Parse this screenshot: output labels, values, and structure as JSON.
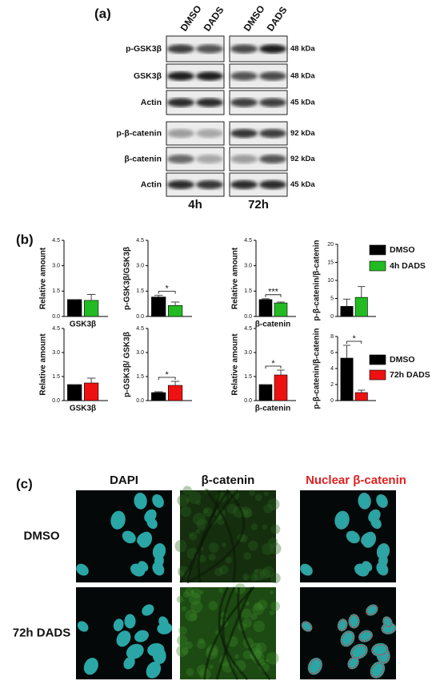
{
  "panel_a": {
    "label": "(a)",
    "columns": [
      "DMSO",
      "DADS",
      "DMSO",
      "DADS"
    ],
    "rows": [
      "p-GSK3β",
      "GSK3β",
      "Actin",
      "p-β-catenin",
      "β-catenin",
      "Actin"
    ],
    "sizes": [
      "48 kDa",
      "48 kDa",
      "45 kDa",
      "92 kDa",
      "92 kDa",
      "45 kDa"
    ],
    "times": [
      "4h",
      "72h"
    ]
  },
  "panel_b": {
    "label": "(b)",
    "legends": [
      [
        {
          "name": "DMSO",
          "color": "#000000"
        },
        {
          "name": "4h DADS",
          "color": "#22bb22"
        }
      ],
      [
        {
          "name": "DMSO",
          "color": "#000000"
        },
        {
          "name": "72h DADS",
          "color": "#ee1111"
        }
      ]
    ]
  },
  "chart_data": [
    {
      "type": "bar",
      "ylabel": "Relative amount",
      "xlabel": "GSK3β",
      "ylim": [
        0,
        4.5
      ],
      "yticks": [
        {
          "value": 0,
          "label": "0.0"
        },
        1.5,
        {
          "value": 3,
          "label": "3.0"
        },
        4.5
      ],
      "values": [
        1,
        0.95
      ],
      "errors": [
        0,
        0.35
      ],
      "colors": [
        "#000000",
        "#22bb22"
      ]
    },
    {
      "type": "bar",
      "ylabel": "p-GSK3β/GSK3β",
      "ylim": [
        0,
        4.5
      ],
      "yticks": [
        {
          "value": 0,
          "label": "0.0"
        },
        1.5,
        {
          "value": 3,
          "label": "3.0"
        },
        4.5
      ],
      "values": [
        1.15,
        0.65
      ],
      "errors": [
        0.1,
        0.2
      ],
      "colors": [
        "#000000",
        "#22bb22"
      ],
      "annotation": "*"
    },
    {
      "type": "bar",
      "ylabel": "Relative amount",
      "xlabel": "β-catenin",
      "ylim": [
        0,
        4.5
      ],
      "yticks": [
        {
          "value": 0,
          "label": "0.0"
        },
        1.5,
        {
          "value": 3,
          "label": "3.0"
        },
        4.5
      ],
      "values": [
        1,
        0.8
      ],
      "errors": [
        0.05,
        0.05
      ],
      "colors": [
        "#000000",
        "#22bb22"
      ],
      "annotation": "***"
    },
    {
      "type": "bar",
      "ylabel": "p-β-catenin/β-catenin",
      "ylim": [
        0,
        20
      ],
      "yticks": [
        0,
        5,
        10,
        15,
        20
      ],
      "values": [
        2.8,
        5.3
      ],
      "errors": [
        2,
        3
      ],
      "colors": [
        "#000000",
        "#22bb22"
      ]
    },
    {
      "type": "bar",
      "ylabel": "Relative amount",
      "xlabel": "GSK3β",
      "ylim": [
        0,
        4.5
      ],
      "yticks": [
        {
          "value": 0,
          "label": "0.0"
        },
        1.5,
        {
          "value": 3,
          "label": "3.0"
        },
        4.5
      ],
      "values": [
        1,
        1.1
      ],
      "errors": [
        0,
        0.3
      ],
      "colors": [
        "#000000",
        "#ee1111"
      ]
    },
    {
      "type": "bar",
      "ylabel": "p-GSK3β/ GSK3β",
      "ylim": [
        0,
        4.5
      ],
      "yticks": [
        {
          "value": 0,
          "label": "0.0"
        },
        1.5,
        {
          "value": 3,
          "label": "3.0"
        },
        4.5
      ],
      "values": [
        0.5,
        0.95
      ],
      "errors": [
        0.05,
        0.25
      ],
      "colors": [
        "#000000",
        "#ee1111"
      ],
      "annotation": "*"
    },
    {
      "type": "bar",
      "ylabel": "Relative amount",
      "xlabel": "β-catenin",
      "ylim": [
        0,
        4.5
      ],
      "yticks": [
        {
          "value": 0,
          "label": "0.0"
        },
        1.5,
        {
          "value": 3,
          "label": "3.0"
        },
        4.5
      ],
      "values": [
        1,
        1.6
      ],
      "errors": [
        0,
        0.3
      ],
      "colors": [
        "#000000",
        "#ee1111"
      ],
      "annotation": "*"
    },
    {
      "type": "bar",
      "ylabel": "p-β-catenin/β-catenin",
      "ylim": [
        0,
        8
      ],
      "yticks": [
        0,
        2,
        4,
        6,
        8
      ],
      "values": [
        5.3,
        1.0
      ],
      "errors": [
        1.6,
        0.3
      ],
      "colors": [
        "#000000",
        "#ee1111"
      ],
      "annotation": "*"
    }
  ],
  "panel_c": {
    "label": "(c)",
    "columns": [
      "DAPI",
      "β-catenin",
      "Nuclear β-catenin"
    ],
    "rows": [
      "DMSO",
      "72h DADS"
    ]
  }
}
